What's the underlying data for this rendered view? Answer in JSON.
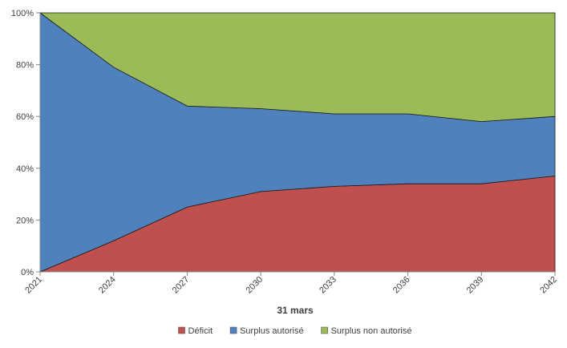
{
  "chart_data": {
    "type": "area",
    "stacked": "percent",
    "xlabel": "31 mars",
    "x": [
      "2021",
      "2024",
      "2027",
      "2030",
      "2033",
      "2036",
      "2039",
      "2042"
    ],
    "y_ticks": [
      "0%",
      "20%",
      "40%",
      "60%",
      "80%",
      "100%"
    ],
    "ylim": [
      0,
      100
    ],
    "grid": false,
    "legend_position": "bottom",
    "series": [
      {
        "name": "Déficit",
        "color": "#c0504d",
        "values": [
          0,
          12,
          25,
          31,
          33,
          34,
          34,
          37
        ]
      },
      {
        "name": "Surplus autorisé",
        "color": "#4f81bd",
        "values": [
          100,
          67,
          39,
          32,
          28,
          27,
          24,
          23
        ]
      },
      {
        "name": "Surplus non autorisé",
        "color": "#9bbb59",
        "values": [
          0,
          21,
          36,
          37,
          39,
          39,
          42,
          40
        ]
      }
    ]
  }
}
